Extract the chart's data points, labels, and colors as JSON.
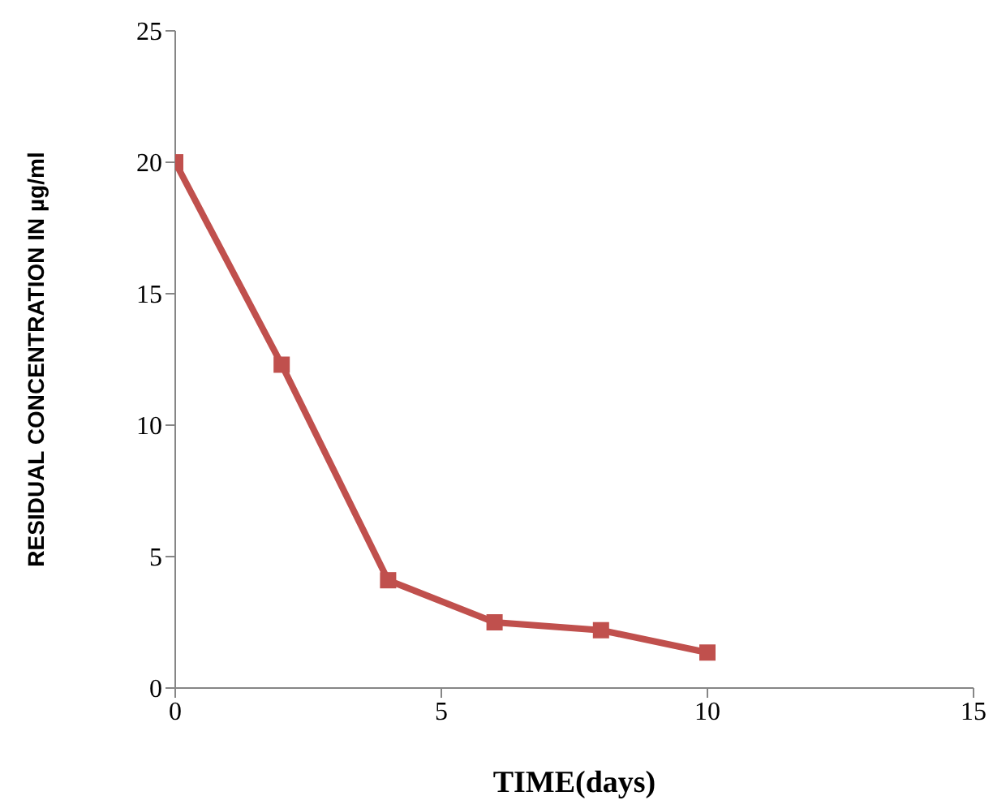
{
  "chart_data": {
    "type": "line",
    "xlabel": "TIME(days)",
    "ylabel": "RESIDUAL CONCENTRATION IN µg/ml",
    "x": [
      0,
      2,
      4,
      6,
      8,
      10
    ],
    "series": [
      {
        "color": "#c0504d",
        "values": [
          20,
          12.3,
          4.1,
          2.5,
          2.2,
          1.35
        ]
      }
    ],
    "xlim": [
      0,
      15
    ],
    "xticks": [
      0,
      5,
      10,
      15
    ],
    "ylim": [
      0,
      25
    ],
    "yticks": [
      0,
      5,
      10,
      15,
      20,
      25
    ],
    "grid": false,
    "legend": false,
    "marker": "square",
    "line_style": "solid"
  }
}
